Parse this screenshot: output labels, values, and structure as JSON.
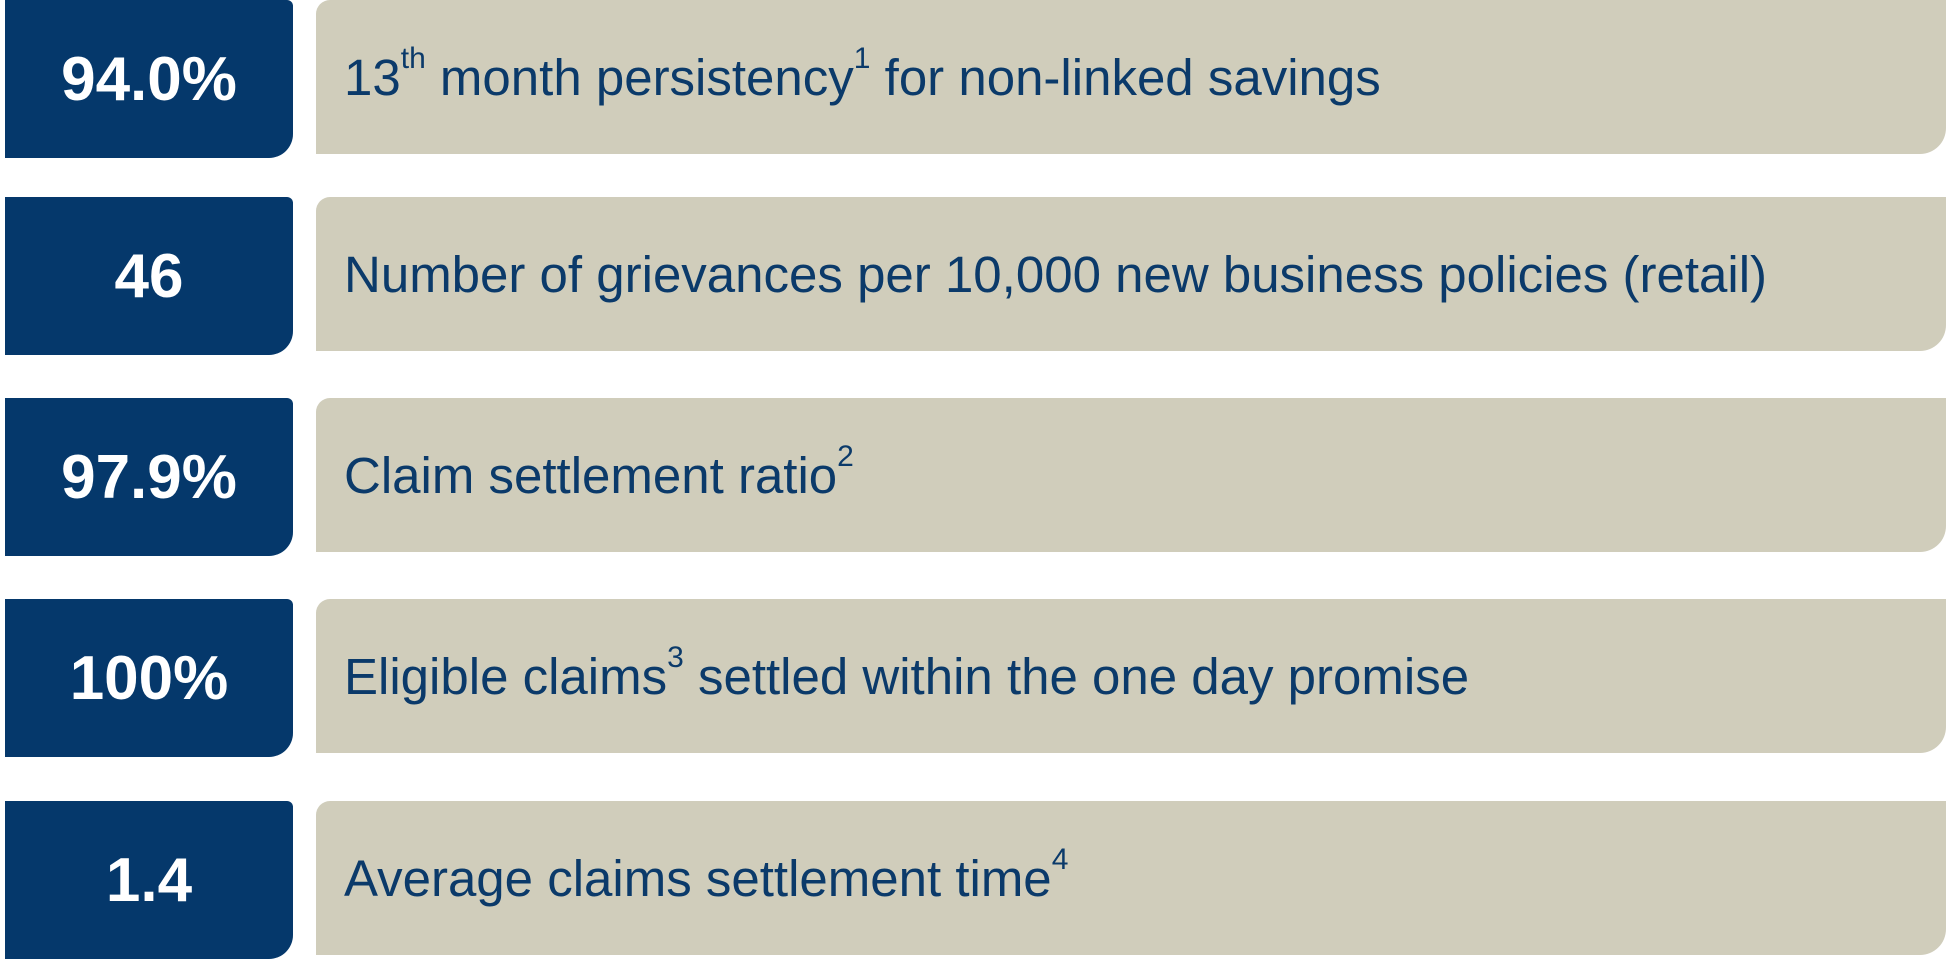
{
  "items": [
    {
      "value": "94.0%",
      "label": [
        {
          "text": "13"
        },
        {
          "sup": "th"
        },
        {
          "text": " month persistency"
        },
        {
          "sup": "1"
        },
        {
          "text": " for non-linked savings"
        }
      ]
    },
    {
      "value": "46",
      "label": [
        {
          "text": "Number of grievances per 10,000 new business policies (retail)"
        }
      ]
    },
    {
      "value": "97.9%",
      "label": [
        {
          "text": "Claim settlement ratio"
        },
        {
          "sup": "2"
        }
      ]
    },
    {
      "value": "100%",
      "label": [
        {
          "text": "Eligible claims"
        },
        {
          "sup": "3"
        },
        {
          "text": " settled within the one day promise"
        }
      ]
    },
    {
      "value": "1.4",
      "label": [
        {
          "text": "Average claims settlement time"
        },
        {
          "sup": "4"
        }
      ]
    }
  ]
}
